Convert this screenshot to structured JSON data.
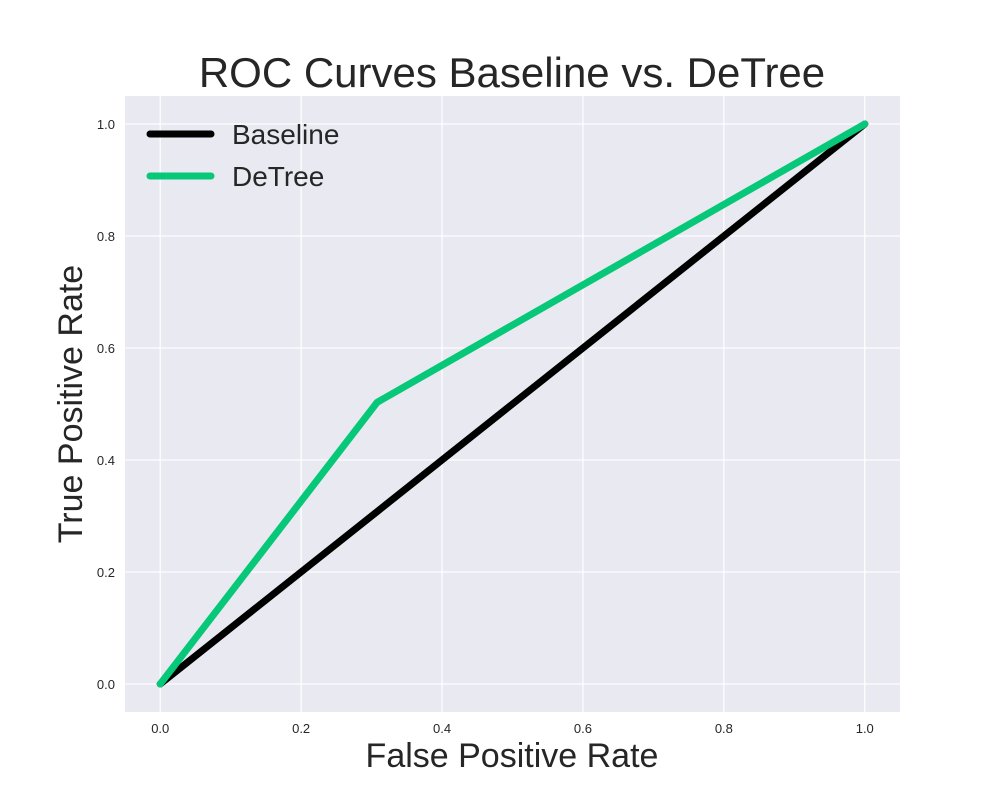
{
  "chart_data": {
    "type": "line",
    "title": "ROC Curves Baseline vs. DeTree",
    "xlabel": "False Positive Rate",
    "ylabel": "True Positive Rate",
    "xlim": [
      -0.05,
      1.05
    ],
    "ylim": [
      -0.05,
      1.05
    ],
    "xticks": [
      "0.0",
      "0.2",
      "0.4",
      "0.6",
      "0.8",
      "1.0"
    ],
    "yticks": [
      "0.0",
      "0.2",
      "0.4",
      "0.6",
      "0.8",
      "1.0"
    ],
    "grid": true,
    "legend_position": "top-left",
    "series": [
      {
        "name": "Baseline",
        "color": "#000000",
        "x": [
          0.0,
          1.0
        ],
        "y": [
          0.0,
          1.0
        ]
      },
      {
        "name": "DeTree",
        "color": "#06c878",
        "x": [
          0.0,
          0.308,
          1.0
        ],
        "y": [
          0.0,
          0.503,
          1.0
        ]
      }
    ]
  },
  "style": {
    "plot_background": "#e8e9f1",
    "grid_color": "#ffffff"
  }
}
